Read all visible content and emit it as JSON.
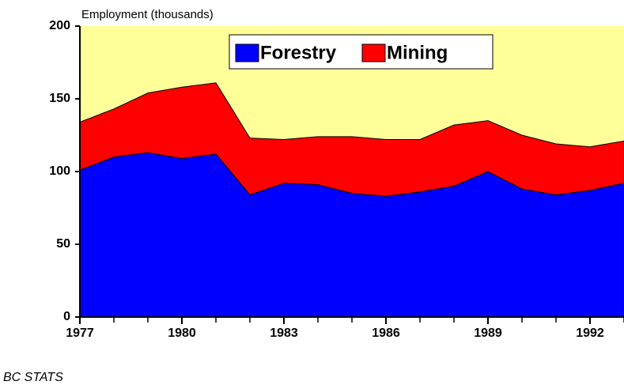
{
  "chart_data": {
    "type": "stacked_area",
    "title": "Employment (thousands)",
    "footer": "BC STATS",
    "x": [
      1977,
      1978,
      1979,
      1980,
      1981,
      1982,
      1983,
      1984,
      1985,
      1986,
      1987,
      1988,
      1989,
      1990,
      1991,
      1992,
      1993
    ],
    "series": [
      {
        "name": "Forestry",
        "color": "#0000ff",
        "values": [
          101,
          110,
          113,
          109,
          112,
          84,
          92,
          91,
          85,
          83,
          86,
          90,
          100,
          88,
          84,
          87,
          92
        ]
      },
      {
        "name": "Mining",
        "color": "#ff0000",
        "values": [
          33,
          33,
          41,
          49,
          49,
          39,
          30,
          33,
          39,
          39,
          36,
          42,
          35,
          37,
          35,
          30,
          29
        ]
      }
    ],
    "background": "#ffff99",
    "xlim": [
      1977,
      1993
    ],
    "xticks": [
      1977,
      1980,
      1983,
      1986,
      1989,
      1992
    ],
    "ylim": [
      0,
      200
    ],
    "yticks": [
      0,
      50,
      100,
      150,
      200
    ],
    "legend": "top"
  }
}
